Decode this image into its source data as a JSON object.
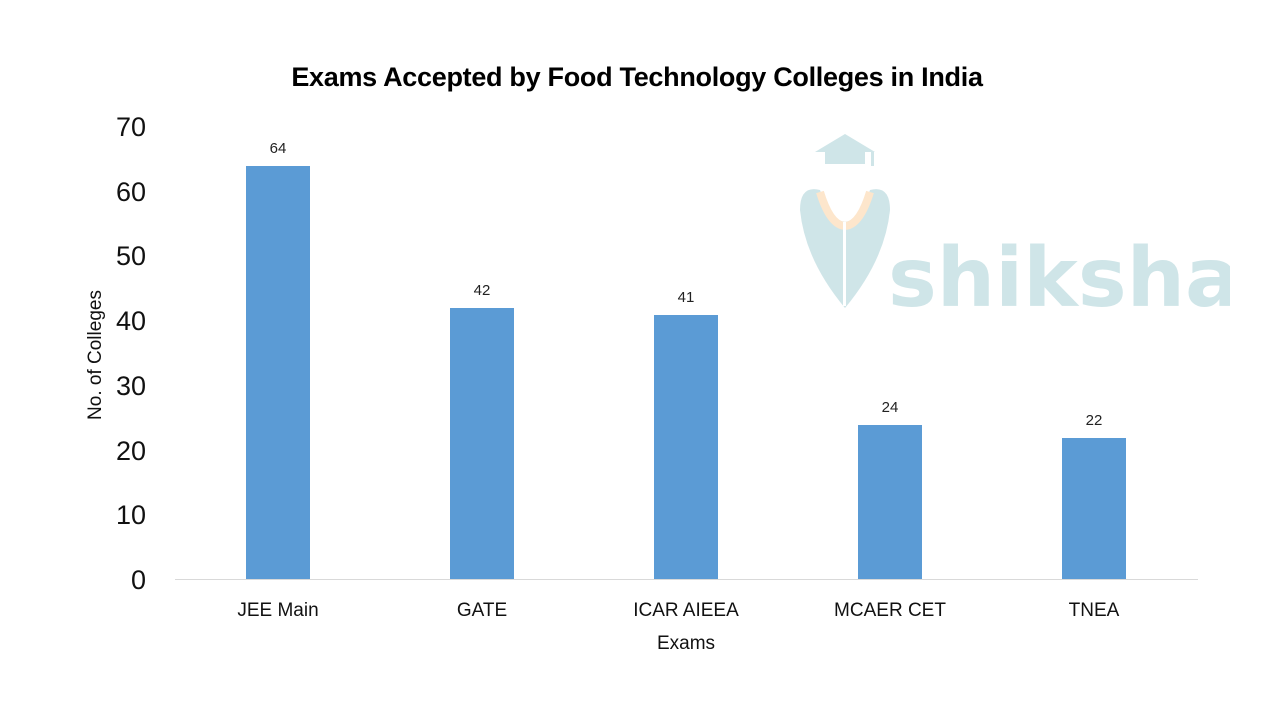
{
  "chart_data": {
    "type": "bar",
    "title": "Exams Accepted by Food Technology Colleges in India",
    "xlabel": "Exams",
    "ylabel": "No. of Colleges",
    "categories": [
      "JEE Main",
      "GATE",
      "ICAR AIEEA",
      "MCAER CET",
      "TNEA"
    ],
    "values": [
      64,
      42,
      41,
      24,
      22
    ],
    "ylim": [
      0,
      70
    ],
    "yticks": [
      "0",
      "10",
      "20",
      "30",
      "40",
      "50",
      "60",
      "70"
    ],
    "grid": false,
    "legend": null,
    "data_labels": [
      "64",
      "42",
      "41",
      "24",
      "22"
    ],
    "bar_color": "#5b9bd5"
  },
  "watermark": {
    "text": "shiksha",
    "color": "#cfe5e8",
    "accent": "#fde6cc"
  }
}
